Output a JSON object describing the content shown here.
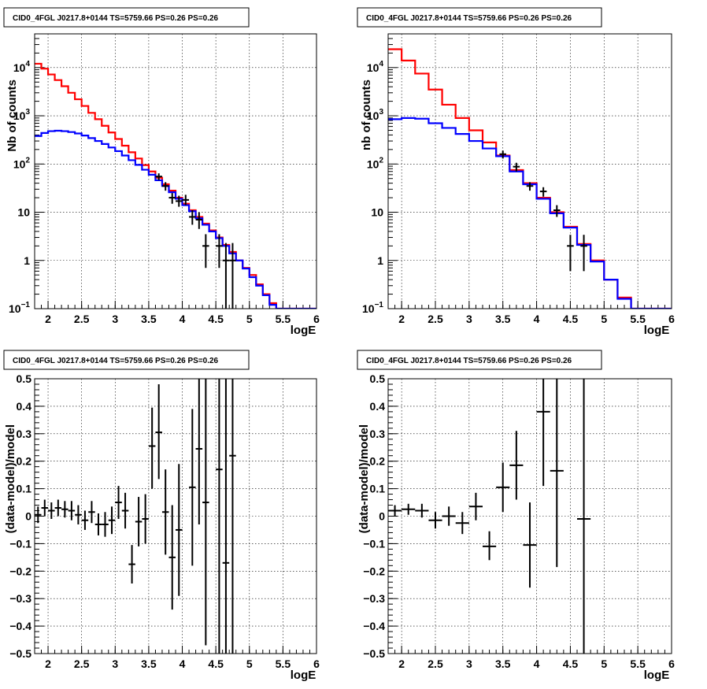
{
  "chart_data": [
    {
      "type": "line",
      "title": "CID0_4FGL J0217.8+0144 TS=5759.66 PS=0.26 PS=0.26",
      "xlabel": "logE",
      "ylabel": "Nb of counts",
      "log_y": true,
      "grid": true,
      "xlim": [
        1.8,
        6.0
      ],
      "ylim": [
        0.1,
        50000
      ],
      "xticks": [
        "2",
        "2.5",
        "3",
        "3.5",
        "4",
        "4.5",
        "5",
        "5.5",
        "6"
      ],
      "yticks": [
        {
          "value": 0.1,
          "label": "10",
          "exp": "−1"
        },
        {
          "value": 1,
          "label": "1",
          "exp": ""
        },
        {
          "value": 10,
          "label": "10",
          "exp": ""
        },
        {
          "value": 100,
          "label": "10",
          "exp": "2"
        },
        {
          "value": 1000,
          "label": "10",
          "exp": "3"
        },
        {
          "value": 10000,
          "label": "10",
          "exp": "4"
        }
      ],
      "bin_edges": [
        1.8,
        1.9,
        2.0,
        2.1,
        2.2,
        2.3,
        2.4,
        2.5,
        2.6,
        2.7,
        2.8,
        2.9,
        3.0,
        3.1,
        3.2,
        3.3,
        3.4,
        3.5,
        3.6,
        3.7,
        3.8,
        3.9,
        4.0,
        4.1,
        4.2,
        4.3,
        4.4,
        4.5,
        4.6,
        4.7,
        4.8,
        4.9,
        5.0,
        5.1,
        5.2,
        5.3,
        5.4,
        5.5,
        5.6,
        5.7,
        5.8,
        5.9,
        6.0
      ],
      "series": [
        {
          "color": "#ff0000",
          "values": [
            12000,
            9500,
            7200,
            5500,
            4100,
            3000,
            2200,
            1600,
            1150,
            850,
            620,
            450,
            330,
            240,
            175,
            130,
            95,
            70,
            52,
            38,
            28,
            20,
            15,
            11,
            8,
            5.8,
            4.2,
            3.0,
            2.1,
            1.5,
            1.0,
            0.7,
            0.5,
            0.32,
            0.2,
            0.13,
            0.1,
            0.1,
            0.1,
            0.1,
            0.1,
            0.1
          ]
        },
        {
          "color": "#0000ff",
          "values": [
            380,
            440,
            480,
            490,
            480,
            460,
            430,
            390,
            345,
            300,
            260,
            220,
            185,
            150,
            120,
            96,
            76,
            60,
            46,
            35,
            26,
            19,
            14,
            10.5,
            7.5,
            5.5,
            4.0,
            2.9,
            2.0,
            1.4,
            1.0,
            0.68,
            0.45,
            0.3,
            0.19,
            0.12,
            0.1,
            0.1,
            0.1,
            0.1,
            0.1,
            0.1
          ]
        }
      ],
      "points": [
        {
          "x": 3.65,
          "y": 55,
          "lo": 46,
          "hi": 64
        },
        {
          "x": 3.75,
          "y": 35,
          "lo": 28,
          "hi": 42
        },
        {
          "x": 3.85,
          "y": 20,
          "lo": 15,
          "hi": 25
        },
        {
          "x": 3.95,
          "y": 17,
          "lo": 13,
          "hi": 22
        },
        {
          "x": 4.05,
          "y": 18,
          "lo": 14,
          "hi": 23
        },
        {
          "x": 4.15,
          "y": 8,
          "lo": 5.5,
          "hi": 11
        },
        {
          "x": 4.25,
          "y": 7,
          "lo": 4.5,
          "hi": 10
        },
        {
          "x": 4.35,
          "y": 2,
          "lo": 0.7,
          "hi": 3.5
        },
        {
          "x": 4.55,
          "y": 2,
          "lo": 0.7,
          "hi": 3.5
        },
        {
          "x": 4.65,
          "y": 1,
          "lo": 0.1,
          "hi": 2.3
        },
        {
          "x": 4.75,
          "y": 1,
          "lo": 0.1,
          "hi": 2.3
        }
      ]
    },
    {
      "type": "line",
      "title": "CID0_4FGL J0217.8+0144 TS=5759.66 PS=0.26 PS=0.26",
      "xlabel": "logE",
      "ylabel": "nb of counts",
      "log_y": true,
      "grid": true,
      "xlim": [
        1.8,
        6.0
      ],
      "ylim": [
        0.1,
        50000
      ],
      "xticks": [
        "2",
        "2.5",
        "3",
        "3.5",
        "4",
        "4.5",
        "5",
        "5.5",
        "6"
      ],
      "yticks": [
        {
          "value": 0.1,
          "label": "10",
          "exp": "−1"
        },
        {
          "value": 1,
          "label": "1",
          "exp": ""
        },
        {
          "value": 10,
          "label": "10",
          "exp": ""
        },
        {
          "value": 100,
          "label": "10",
          "exp": "2"
        },
        {
          "value": 1000,
          "label": "10",
          "exp": "3"
        },
        {
          "value": 10000,
          "label": "10",
          "exp": "4"
        }
      ],
      "bin_edges": [
        1.8,
        2.0,
        2.2,
        2.4,
        2.6,
        2.8,
        3.0,
        3.2,
        3.4,
        3.6,
        3.8,
        4.0,
        4.2,
        4.4,
        4.6,
        4.8,
        5.0,
        5.2,
        5.4,
        5.6,
        5.8,
        6.0
      ],
      "series": [
        {
          "color": "#ff0000",
          "values": [
            24000,
            14000,
            7500,
            3500,
            1700,
            900,
            500,
            280,
            150,
            75,
            40,
            20,
            10,
            5,
            2.2,
            1.0,
            0.4,
            0.17,
            0.1,
            0.1,
            0.1
          ]
        },
        {
          "color": "#0000ff",
          "values": [
            850,
            900,
            870,
            700,
            560,
            420,
            300,
            210,
            145,
            70,
            38,
            19,
            9.5,
            4.8,
            2.1,
            0.95,
            0.4,
            0.16,
            0.1,
            0.1,
            0.1
          ]
        }
      ],
      "points": [
        {
          "x": 3.5,
          "y": 160,
          "lo": 130,
          "hi": 190
        },
        {
          "x": 3.7,
          "y": 88,
          "lo": 70,
          "hi": 106
        },
        {
          "x": 3.9,
          "y": 35,
          "lo": 28,
          "hi": 42
        },
        {
          "x": 4.1,
          "y": 27,
          "lo": 21,
          "hi": 33
        },
        {
          "x": 4.3,
          "y": 11,
          "lo": 8,
          "hi": 14
        },
        {
          "x": 4.5,
          "y": 2,
          "lo": 0.6,
          "hi": 3.4
        },
        {
          "x": 4.7,
          "y": 2,
          "lo": 0.6,
          "hi": 3.4
        }
      ]
    },
    {
      "type": "scatter",
      "title": "CID0_4FGL J0217.8+0144 TS=5759.66 PS=0.26 PS=0.26",
      "xlabel": "logE",
      "ylabel": "(data-model)/model",
      "grid": true,
      "xlim": [
        1.8,
        6.0
      ],
      "ylim": [
        -0.5,
        0.5
      ],
      "xticks": [
        "2",
        "2.5",
        "3",
        "3.5",
        "4",
        "4.5",
        "5",
        "5.5",
        "6"
      ],
      "yticks": [
        "−0.5",
        "−0.4",
        "−0.3",
        "−0.2",
        "−0.1",
        "0",
        "0.1",
        "0.2",
        "0.3",
        "0.4",
        "0.5"
      ],
      "xerr": 0.05,
      "points": [
        {
          "x": 1.85,
          "y": 0.005,
          "lo": -0.025,
          "hi": 0.035
        },
        {
          "x": 1.95,
          "y": 0.03,
          "lo": 0.0,
          "hi": 0.06
        },
        {
          "x": 2.05,
          "y": 0.02,
          "lo": -0.01,
          "hi": 0.05
        },
        {
          "x": 2.15,
          "y": 0.03,
          "lo": 0.0,
          "hi": 0.06
        },
        {
          "x": 2.25,
          "y": 0.025,
          "lo": -0.005,
          "hi": 0.055
        },
        {
          "x": 2.35,
          "y": 0.02,
          "lo": -0.015,
          "hi": 0.055
        },
        {
          "x": 2.45,
          "y": 0.005,
          "lo": -0.03,
          "hi": 0.04
        },
        {
          "x": 2.55,
          "y": -0.015,
          "lo": -0.05,
          "hi": 0.02
        },
        {
          "x": 2.65,
          "y": 0.015,
          "lo": -0.025,
          "hi": 0.055
        },
        {
          "x": 2.75,
          "y": -0.03,
          "lo": -0.07,
          "hi": 0.01
        },
        {
          "x": 2.85,
          "y": -0.03,
          "lo": -0.075,
          "hi": 0.015
        },
        {
          "x": 2.95,
          "y": -0.015,
          "lo": -0.065,
          "hi": 0.035
        },
        {
          "x": 3.05,
          "y": 0.05,
          "lo": -0.01,
          "hi": 0.11
        },
        {
          "x": 3.15,
          "y": 0.02,
          "lo": -0.045,
          "hi": 0.085
        },
        {
          "x": 3.25,
          "y": -0.175,
          "lo": -0.245,
          "hi": -0.105
        },
        {
          "x": 3.35,
          "y": -0.02,
          "lo": -0.11,
          "hi": 0.07
        },
        {
          "x": 3.45,
          "y": -0.01,
          "lo": -0.1,
          "hi": 0.08
        },
        {
          "x": 3.55,
          "y": 0.255,
          "lo": 0.1,
          "hi": 0.395
        },
        {
          "x": 3.65,
          "y": 0.305,
          "lo": 0.135,
          "hi": 0.48
        },
        {
          "x": 3.75,
          "y": 0.015,
          "lo": -0.14,
          "hi": 0.17
        },
        {
          "x": 3.85,
          "y": -0.15,
          "lo": -0.34,
          "hi": 0.04
        },
        {
          "x": 3.95,
          "y": -0.05,
          "lo": -0.29,
          "hi": 0.19
        },
        {
          "x": 4.15,
          "y": 0.105,
          "lo": -0.18,
          "hi": 0.39
        },
        {
          "x": 4.25,
          "y": 0.245,
          "lo": -0.03,
          "hi": 0.5
        },
        {
          "x": 4.35,
          "y": 0.05,
          "lo": -0.47,
          "hi": 0.5
        },
        {
          "x": 4.55,
          "y": 0.17,
          "lo": -0.5,
          "hi": 0.5
        },
        {
          "x": 4.65,
          "y": -0.17,
          "lo": -0.5,
          "hi": 0.5
        },
        {
          "x": 4.75,
          "y": 0.22,
          "lo": -0.5,
          "hi": 0.5
        }
      ]
    },
    {
      "type": "scatter",
      "title": "CID0_4FGL J0217.8+0144 TS=5759.66 PS=0.26 PS=0.26",
      "xlabel": "logE",
      "ylabel": "(data-model)/model",
      "grid": true,
      "xlim": [
        1.8,
        6.0
      ],
      "ylim": [
        -0.5,
        0.5
      ],
      "xticks": [
        "2",
        "2.5",
        "3",
        "3.5",
        "4",
        "4.5",
        "5",
        "5.5",
        "6"
      ],
      "yticks": [
        "−0.5",
        "−0.4",
        "−0.3",
        "−0.2",
        "−0.1",
        "0",
        "0.1",
        "0.2",
        "0.3",
        "0.4",
        "0.5"
      ],
      "xerr": 0.1,
      "points": [
        {
          "x": 1.9,
          "y": 0.02,
          "lo": 0.0,
          "hi": 0.04
        },
        {
          "x": 2.1,
          "y": 0.025,
          "lo": 0.005,
          "hi": 0.045
        },
        {
          "x": 2.3,
          "y": 0.02,
          "lo": -0.005,
          "hi": 0.045
        },
        {
          "x": 2.5,
          "y": -0.015,
          "lo": -0.045,
          "hi": 0.015
        },
        {
          "x": 2.7,
          "y": 0.0,
          "lo": -0.035,
          "hi": 0.035
        },
        {
          "x": 2.9,
          "y": -0.025,
          "lo": -0.065,
          "hi": 0.015
        },
        {
          "x": 3.1,
          "y": 0.035,
          "lo": -0.015,
          "hi": 0.085
        },
        {
          "x": 3.3,
          "y": -0.11,
          "lo": -0.16,
          "hi": -0.055
        },
        {
          "x": 3.5,
          "y": 0.105,
          "lo": 0.015,
          "hi": 0.195
        },
        {
          "x": 3.7,
          "y": 0.185,
          "lo": 0.06,
          "hi": 0.31
        },
        {
          "x": 3.9,
          "y": -0.105,
          "lo": -0.26,
          "hi": 0.05
        },
        {
          "x": 4.1,
          "y": 0.38,
          "lo": 0.11,
          "hi": 0.5
        },
        {
          "x": 4.3,
          "y": 0.165,
          "lo": -0.185,
          "hi": 0.5
        },
        {
          "x": 4.7,
          "y": -0.01,
          "lo": -0.5,
          "hi": 0.5
        }
      ]
    }
  ]
}
